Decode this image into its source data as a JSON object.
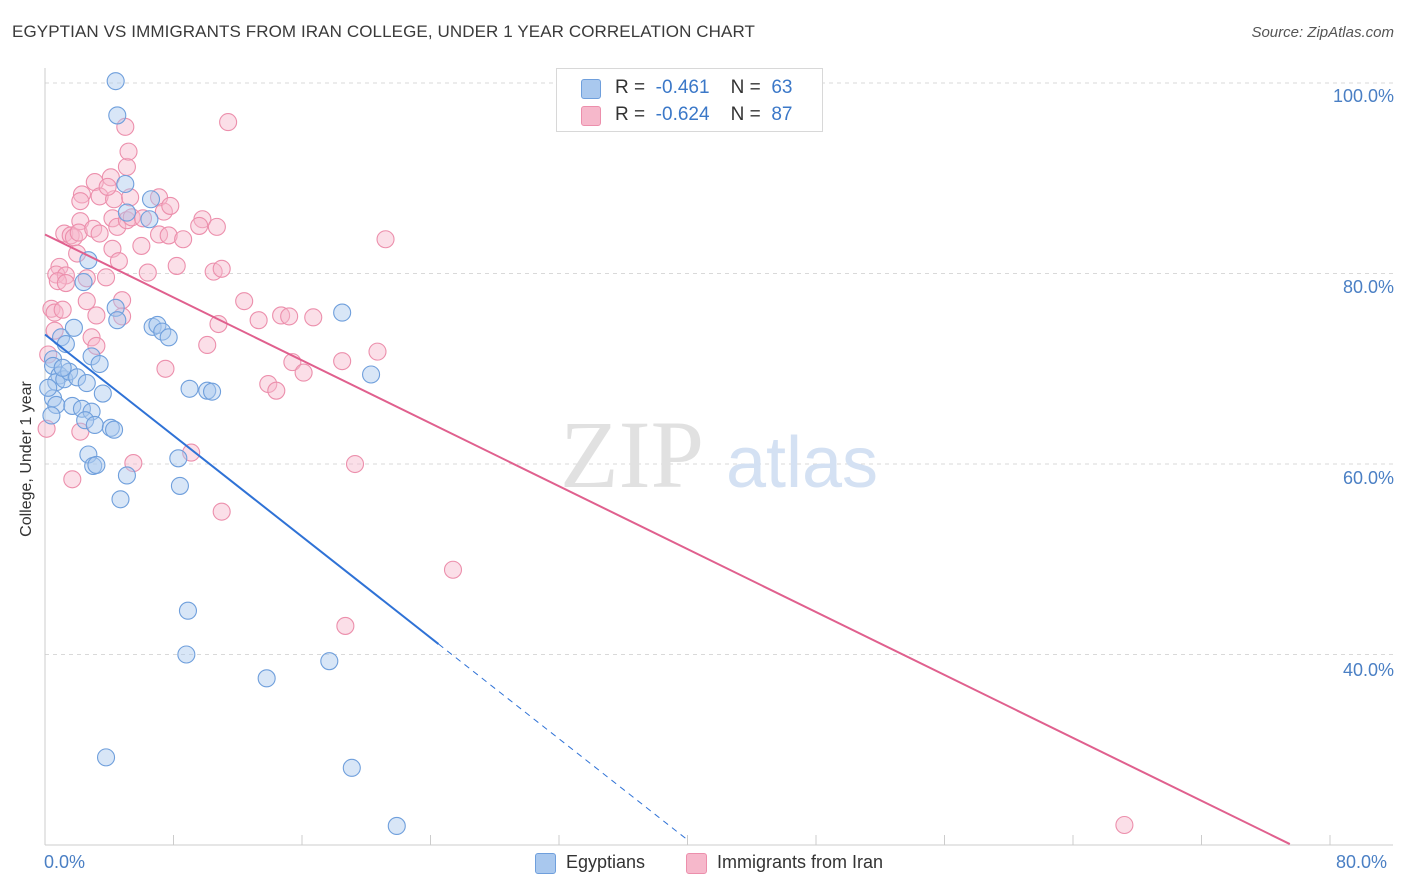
{
  "title": "EGYPTIAN VS IMMIGRANTS FROM IRAN COLLEGE, UNDER 1 YEAR CORRELATION CHART",
  "source": "Source: ZipAtlas.com",
  "watermark": {
    "zip": "ZIP",
    "atlas": "atlas"
  },
  "legend": {
    "rows": [
      {
        "r_label": "R =",
        "r_value": "-0.461",
        "n_label": "N =",
        "n_value": "63"
      },
      {
        "r_label": "R =",
        "r_value": "-0.624",
        "n_label": "N =",
        "n_value": "87"
      }
    ]
  },
  "colors": {
    "blue_fill": "#a9c8ee",
    "blue_stroke": "#6f9fdc",
    "blue_line": "#2f72d6",
    "pink_fill": "#f6b8cb",
    "pink_stroke": "#ec8fac",
    "pink_line": "#e0608e",
    "grid": "#d9d9d9",
    "tick_label": "#4a7fc4"
  },
  "chart_data": {
    "type": "scatter",
    "title": "EGYPTIAN VS IMMIGRANTS FROM IRAN COLLEGE, UNDER 1 YEAR CORRELATION CHART",
    "xlabel": "",
    "ylabel": "College, Under 1 year",
    "xlim": [
      0,
      80
    ],
    "ylim": [
      20,
      102
    ],
    "x_tick_labels": [
      "0.0%",
      "80.0%"
    ],
    "y_ticks": [
      40,
      60,
      80,
      100
    ],
    "y_tick_labels": [
      "40.0%",
      "60.0%",
      "80.0%",
      "100.0%"
    ],
    "grid": true,
    "legend_position": "bottom",
    "series": [
      {
        "name": "Egyptians",
        "r": -0.461,
        "n": 63,
        "trend": {
          "x0": 0.0,
          "y0": 73.6,
          "x1": 24.5,
          "y1": 41.1,
          "dash_to_x": 40.0
        },
        "points": [
          [
            4.4,
            100.2
          ],
          [
            4.5,
            96.6
          ],
          [
            0.5,
            71.0
          ],
          [
            0.5,
            70.3
          ],
          [
            0.9,
            69.3
          ],
          [
            0.7,
            68.6
          ],
          [
            0.5,
            66.9
          ],
          [
            0.7,
            66.2
          ],
          [
            0.4,
            65.1
          ],
          [
            1.0,
            73.3
          ],
          [
            1.3,
            72.6
          ],
          [
            1.8,
            74.3
          ],
          [
            1.2,
            68.9
          ],
          [
            1.5,
            69.7
          ],
          [
            2.0,
            69.1
          ],
          [
            2.6,
            68.5
          ],
          [
            1.7,
            66.1
          ],
          [
            2.3,
            65.8
          ],
          [
            2.9,
            65.5
          ],
          [
            2.5,
            64.6
          ],
          [
            3.1,
            64.1
          ],
          [
            3.6,
            67.4
          ],
          [
            4.1,
            63.8
          ],
          [
            4.3,
            63.6
          ],
          [
            2.9,
            71.3
          ],
          [
            2.7,
            61.0
          ],
          [
            3.0,
            59.8
          ],
          [
            3.2,
            59.9
          ],
          [
            5.1,
            58.8
          ],
          [
            4.7,
            56.3
          ],
          [
            2.4,
            79.1
          ],
          [
            2.7,
            81.4
          ],
          [
            5.1,
            86.4
          ],
          [
            5.0,
            89.4
          ],
          [
            6.5,
            85.7
          ],
          [
            6.6,
            87.8
          ],
          [
            4.4,
            76.4
          ],
          [
            4.5,
            75.1
          ],
          [
            6.7,
            74.4
          ],
          [
            7.0,
            74.6
          ],
          [
            7.3,
            73.9
          ],
          [
            7.7,
            73.3
          ],
          [
            9.0,
            67.9
          ],
          [
            10.1,
            67.7
          ],
          [
            10.4,
            67.6
          ],
          [
            8.3,
            60.6
          ],
          [
            8.4,
            57.7
          ],
          [
            8.9,
            44.6
          ],
          [
            8.8,
            40.0
          ],
          [
            13.8,
            37.5
          ],
          [
            17.7,
            39.3
          ],
          [
            18.5,
            75.9
          ],
          [
            20.3,
            69.4
          ],
          [
            3.8,
            29.2
          ],
          [
            19.1,
            28.1
          ],
          [
            21.9,
            22.0
          ],
          [
            0.2,
            68.0
          ],
          [
            1.1,
            70.1
          ],
          [
            3.4,
            70.5
          ]
        ]
      },
      {
        "name": "Immigrants from Iran",
        "r": -0.624,
        "n": 87,
        "trend": {
          "x0": 0.0,
          "y0": 84.1,
          "x1": 77.5,
          "y1": 20.1
        },
        "points": [
          [
            11.4,
            95.9
          ],
          [
            5.0,
            95.4
          ],
          [
            5.1,
            91.2
          ],
          [
            5.2,
            92.8
          ],
          [
            4.1,
            90.1
          ],
          [
            3.1,
            89.6
          ],
          [
            2.3,
            88.3
          ],
          [
            3.4,
            88.1
          ],
          [
            4.3,
            87.8
          ],
          [
            5.3,
            88.0
          ],
          [
            3.9,
            89.1
          ],
          [
            7.1,
            88.0
          ],
          [
            7.4,
            86.5
          ],
          [
            7.8,
            87.1
          ],
          [
            2.2,
            87.6
          ],
          [
            2.2,
            85.5
          ],
          [
            4.2,
            85.8
          ],
          [
            4.5,
            84.9
          ],
          [
            5.1,
            85.6
          ],
          [
            5.4,
            85.9
          ],
          [
            6.1,
            85.8
          ],
          [
            9.8,
            85.7
          ],
          [
            9.6,
            85.0
          ],
          [
            10.7,
            84.9
          ],
          [
            1.2,
            84.2
          ],
          [
            1.6,
            84.0
          ],
          [
            1.8,
            83.8
          ],
          [
            2.1,
            84.3
          ],
          [
            3.0,
            84.7
          ],
          [
            3.4,
            84.2
          ],
          [
            7.1,
            84.1
          ],
          [
            7.7,
            84.0
          ],
          [
            8.6,
            83.6
          ],
          [
            21.2,
            83.6
          ],
          [
            4.2,
            82.6
          ],
          [
            4.6,
            81.3
          ],
          [
            8.2,
            80.8
          ],
          [
            6.4,
            80.1
          ],
          [
            10.5,
            80.2
          ],
          [
            11.0,
            80.5
          ],
          [
            0.9,
            80.7
          ],
          [
            0.7,
            79.9
          ],
          [
            1.3,
            79.8
          ],
          [
            0.8,
            79.2
          ],
          [
            1.3,
            79.0
          ],
          [
            2.6,
            79.5
          ],
          [
            3.8,
            79.6
          ],
          [
            0.4,
            76.3
          ],
          [
            0.6,
            75.9
          ],
          [
            1.1,
            76.2
          ],
          [
            3.2,
            75.6
          ],
          [
            4.8,
            77.2
          ],
          [
            2.6,
            77.1
          ],
          [
            4.8,
            75.5
          ],
          [
            12.4,
            77.1
          ],
          [
            13.3,
            75.1
          ],
          [
            14.7,
            75.6
          ],
          [
            15.2,
            75.5
          ],
          [
            16.7,
            75.4
          ],
          [
            10.8,
            74.7
          ],
          [
            2.9,
            73.3
          ],
          [
            3.2,
            72.4
          ],
          [
            10.1,
            72.5
          ],
          [
            18.5,
            70.8
          ],
          [
            20.7,
            71.8
          ],
          [
            15.4,
            70.7
          ],
          [
            16.1,
            69.6
          ],
          [
            7.5,
            70.0
          ],
          [
            13.9,
            68.4
          ],
          [
            14.4,
            67.7
          ],
          [
            0.2,
            71.5
          ],
          [
            2.2,
            63.4
          ],
          [
            0.1,
            63.7
          ],
          [
            1.7,
            58.4
          ],
          [
            5.5,
            60.1
          ],
          [
            9.1,
            61.2
          ],
          [
            11.0,
            55.0
          ],
          [
            19.3,
            60.0
          ],
          [
            25.4,
            48.9
          ],
          [
            18.7,
            43.0
          ],
          [
            67.2,
            22.1
          ],
          [
            0.6,
            74.0
          ],
          [
            2.0,
            82.1
          ],
          [
            6.0,
            82.9
          ]
        ]
      }
    ]
  }
}
